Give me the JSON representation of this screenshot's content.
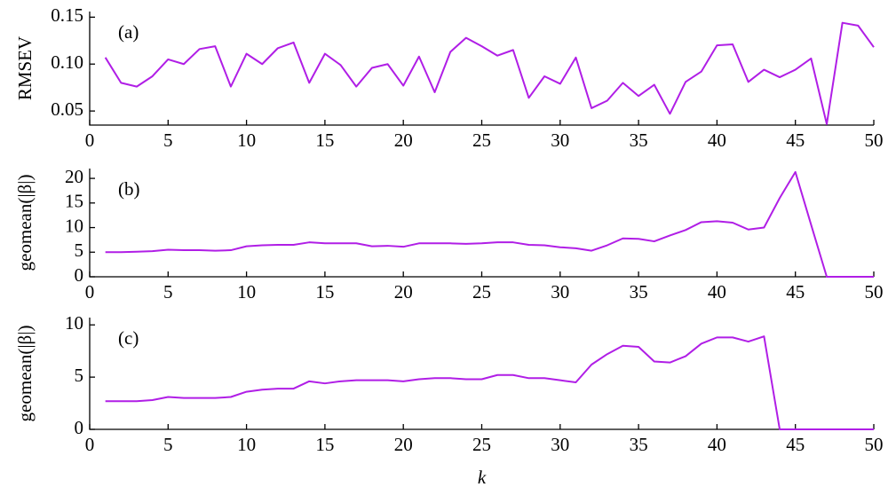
{
  "chart_data": [
    {
      "type": "line",
      "annotation": "(a)",
      "y_label": "RMSEV",
      "x": [
        1,
        2,
        3,
        4,
        5,
        6,
        7,
        8,
        9,
        10,
        11,
        12,
        13,
        14,
        15,
        16,
        17,
        18,
        19,
        20,
        21,
        22,
        23,
        24,
        25,
        26,
        27,
        28,
        29,
        30,
        31,
        32,
        33,
        34,
        35,
        36,
        37,
        38,
        39,
        40,
        41,
        42,
        43,
        44,
        45,
        46,
        47,
        48,
        49,
        50
      ],
      "values": [
        0.107,
        0.08,
        0.076,
        0.087,
        0.105,
        0.1,
        0.116,
        0.119,
        0.076,
        0.111,
        0.1,
        0.117,
        0.123,
        0.08,
        0.111,
        0.099,
        0.076,
        0.096,
        0.1,
        0.077,
        0.108,
        0.07,
        0.113,
        0.128,
        0.119,
        0.109,
        0.115,
        0.064,
        0.087,
        0.079,
        0.107,
        0.053,
        0.061,
        0.08,
        0.066,
        0.078,
        0.047,
        0.081,
        0.092,
        0.12,
        0.121,
        0.081,
        0.094,
        0.086,
        0.094,
        0.106,
        0.036,
        0.144,
        0.141,
        0.118
      ],
      "color": "#b01ee6",
      "xlim": [
        0,
        50
      ],
      "xticks": [
        0,
        5,
        10,
        15,
        20,
        25,
        30,
        35,
        40,
        45,
        50
      ],
      "ylim": [
        0.035,
        0.156
      ],
      "yticks": [
        0.05,
        {
          "value": 0.1,
          "label": "0.10"
        },
        0.15
      ]
    },
    {
      "type": "line",
      "annotation": "(b)",
      "y_label": "geomean(|β|)",
      "x": [
        1,
        2,
        3,
        4,
        5,
        6,
        7,
        8,
        9,
        10,
        11,
        12,
        13,
        14,
        15,
        16,
        17,
        18,
        19,
        20,
        21,
        22,
        23,
        24,
        25,
        26,
        27,
        28,
        29,
        30,
        31,
        32,
        33,
        34,
        35,
        36,
        37,
        38,
        39,
        40,
        41,
        42,
        43,
        44,
        45,
        46,
        47,
        48,
        49,
        50
      ],
      "values": [
        5.0,
        5.0,
        5.1,
        5.2,
        5.5,
        5.4,
        5.4,
        5.3,
        5.4,
        6.2,
        6.4,
        6.5,
        6.5,
        7.0,
        6.8,
        6.8,
        6.8,
        6.2,
        6.3,
        6.1,
        6.8,
        6.8,
        6.8,
        6.7,
        6.8,
        7.0,
        7.0,
        6.5,
        6.4,
        6.0,
        5.8,
        5.3,
        6.4,
        7.8,
        7.7,
        7.2,
        8.4,
        9.5,
        11.1,
        11.3,
        11.0,
        9.6,
        10.0,
        16.0,
        21.3,
        10.6,
        0,
        0,
        0,
        0
      ],
      "color": "#b01ee6",
      "xlim": [
        0,
        50
      ],
      "xticks": [
        0,
        5,
        10,
        15,
        20,
        25,
        30,
        35,
        40,
        45,
        50
      ],
      "ylim": [
        0,
        22
      ],
      "yticks": [
        0,
        5,
        10,
        15,
        20
      ]
    },
    {
      "type": "line",
      "annotation": "(c)",
      "y_label": "geomean(|β|)",
      "x_label": "k",
      "x": [
        1,
        2,
        3,
        4,
        5,
        6,
        7,
        8,
        9,
        10,
        11,
        12,
        13,
        14,
        15,
        16,
        17,
        18,
        19,
        20,
        21,
        22,
        23,
        24,
        25,
        26,
        27,
        28,
        29,
        30,
        31,
        32,
        33,
        34,
        35,
        36,
        37,
        38,
        39,
        40,
        41,
        42,
        43,
        44,
        45,
        46,
        47,
        48,
        49,
        50
      ],
      "values": [
        2.7,
        2.7,
        2.7,
        2.8,
        3.1,
        3.0,
        3.0,
        3.0,
        3.1,
        3.6,
        3.8,
        3.9,
        3.9,
        4.6,
        4.4,
        4.6,
        4.7,
        4.7,
        4.7,
        4.6,
        4.8,
        4.9,
        4.9,
        4.8,
        4.8,
        5.2,
        5.2,
        4.9,
        4.9,
        4.7,
        4.5,
        6.2,
        7.2,
        8.0,
        7.9,
        6.5,
        6.4,
        7.0,
        8.2,
        8.8,
        8.8,
        8.4,
        8.9,
        0,
        0,
        0,
        0,
        0,
        0,
        0
      ],
      "color": "#b01ee6",
      "xlim": [
        0,
        50
      ],
      "xticks": [
        0,
        5,
        10,
        15,
        20,
        25,
        30,
        35,
        40,
        45,
        50
      ],
      "ylim": [
        0,
        10.7
      ],
      "yticks": [
        0,
        5,
        10
      ]
    }
  ]
}
